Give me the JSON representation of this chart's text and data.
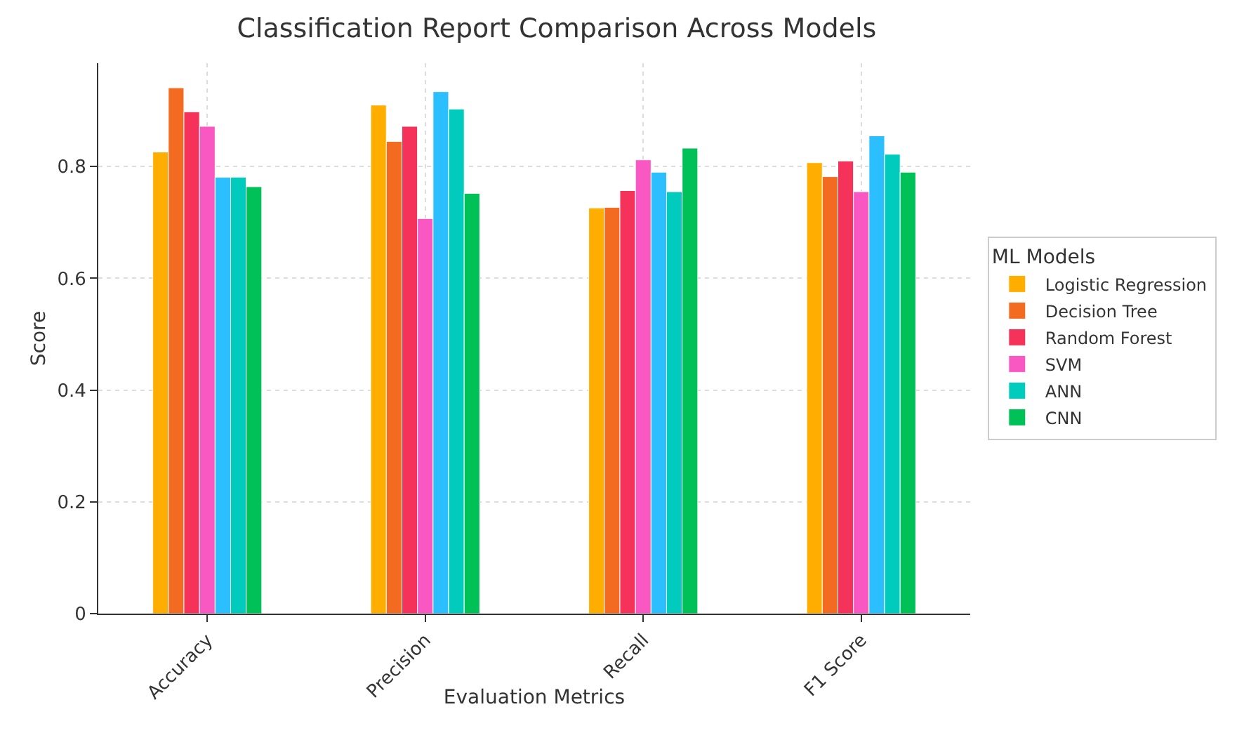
{
  "chart_data": {
    "type": "bar",
    "title": "Classification Report Comparison Across Models",
    "xlabel": "Evaluation Metrics",
    "ylabel": "Score",
    "legend_title": "ML Models",
    "categories": [
      "Accuracy",
      "Precision",
      "Recall",
      "F1 Score"
    ],
    "series": [
      {
        "name": "Logistic Regression",
        "color": "#ffae00",
        "values": [
          0.826,
          0.91,
          0.726,
          0.807
        ]
      },
      {
        "name": "Decision Tree",
        "color": "#f26b21",
        "values": [
          0.941,
          0.845,
          0.727,
          0.782
        ]
      },
      {
        "name": "Random Forest",
        "color": "#f5325a",
        "values": [
          0.898,
          0.872,
          0.757,
          0.81
        ]
      },
      {
        "name": "SVM",
        "color": "#f957c1",
        "values": [
          0.872,
          0.707,
          0.812,
          0.755
        ]
      },
      {
        "color": "#2bbfff",
        "values": [
          0.781,
          0.934,
          0.79,
          0.855
        ]
      },
      {
        "name": "ANN",
        "color": "#00cbbd",
        "values": [
          0.781,
          0.903,
          0.755,
          0.822
        ]
      },
      {
        "name": "CNN",
        "color": "#00c157",
        "values": [
          0.764,
          0.752,
          0.833,
          0.79
        ]
      }
    ],
    "ylim": [
      0,
      0.985
    ],
    "yticks": [
      0,
      0.2,
      0.4,
      0.6,
      0.8
    ],
    "grid": true,
    "legend": "right"
  }
}
